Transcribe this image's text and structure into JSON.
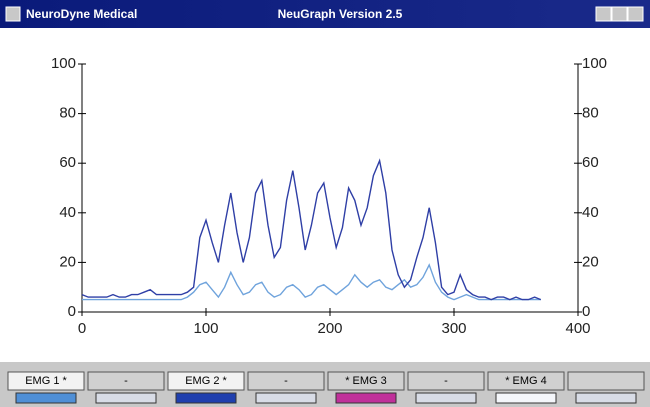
{
  "window": {
    "app": "NeuroDyne Medical",
    "title": "NeuGraph Version 2.5"
  },
  "chart_data": {
    "type": "line",
    "x": [
      0,
      5,
      10,
      15,
      20,
      25,
      30,
      35,
      40,
      45,
      50,
      55,
      60,
      65,
      70,
      75,
      80,
      85,
      90,
      95,
      100,
      105,
      110,
      115,
      120,
      125,
      130,
      135,
      140,
      145,
      150,
      155,
      160,
      165,
      170,
      175,
      180,
      185,
      190,
      195,
      200,
      205,
      210,
      215,
      220,
      225,
      230,
      235,
      240,
      245,
      250,
      255,
      260,
      265,
      270,
      275,
      280,
      285,
      290,
      295,
      300,
      305,
      310,
      315,
      320,
      325,
      330,
      335,
      340,
      345,
      350,
      355,
      360,
      365,
      370
    ],
    "series": [
      {
        "color": "#2f3fa6",
        "values": [
          7,
          6,
          6,
          6,
          6,
          7,
          6,
          6,
          7,
          7,
          8,
          9,
          7,
          7,
          7,
          7,
          7,
          8,
          10,
          30,
          37,
          28,
          20,
          35,
          48,
          32,
          20,
          30,
          48,
          53,
          35,
          22,
          26,
          45,
          57,
          42,
          25,
          35,
          48,
          52,
          38,
          26,
          34,
          50,
          45,
          35,
          42,
          55,
          61,
          48,
          25,
          15,
          10,
          13,
          22,
          30,
          42,
          28,
          10,
          7,
          8,
          15,
          9,
          7,
          6,
          6,
          5,
          6,
          6,
          5,
          6,
          5,
          5,
          6,
          5
        ]
      },
      {
        "color": "#6fa3dc",
        "values": [
          5,
          5,
          5,
          5,
          5,
          5,
          5,
          5,
          5,
          5,
          5,
          5,
          5,
          5,
          5,
          5,
          5,
          6,
          8,
          11,
          12,
          9,
          6,
          10,
          16,
          11,
          7,
          8,
          11,
          12,
          8,
          6,
          7,
          10,
          11,
          9,
          6,
          7,
          10,
          11,
          9,
          7,
          9,
          11,
          15,
          12,
          10,
          12,
          13,
          10,
          9,
          11,
          13,
          10,
          11,
          14,
          19,
          12,
          8,
          6,
          5,
          6,
          7,
          6,
          5,
          5,
          5,
          5,
          5,
          5,
          5,
          5,
          5,
          5,
          5
        ]
      }
    ],
    "xlim": [
      0,
      400
    ],
    "xticks": [
      0,
      100,
      200,
      300,
      400
    ],
    "ylim": [
      0,
      100
    ],
    "yticks": [
      0,
      20,
      40,
      60,
      80,
      100
    ],
    "y2lim": [
      0,
      100
    ],
    "y2ticks": [
      0,
      20,
      40,
      60,
      80,
      100
    ]
  },
  "tabs": [
    "EMG 1 *",
    "-",
    "EMG 2 *",
    "-",
    "* EMG 3",
    "-",
    "* EMG 4"
  ],
  "swatches": [
    "#4f8fd6",
    "#d8dce6",
    "#1f3fae",
    "#d8dce6",
    "#c0309a",
    "#d8dce6",
    "#f4f6fa",
    "#d8dce6"
  ]
}
